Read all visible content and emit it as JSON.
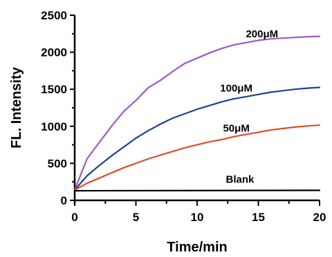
{
  "chart_data": {
    "type": "line",
    "xlabel": "Time/min",
    "ylabel": "FL. Intensity",
    "xlim": [
      0,
      20
    ],
    "ylim": [
      0,
      2500
    ],
    "x_ticks": [
      0,
      5,
      10,
      15,
      20
    ],
    "y_ticks": [
      0,
      500,
      1000,
      1500,
      2000,
      2500
    ],
    "grid": false,
    "legend": "inline labels",
    "series": [
      {
        "name": "200μM",
        "color": "#9b59c6",
        "x": [
          0,
          1,
          2,
          3,
          4,
          5,
          6,
          7,
          8,
          9,
          10,
          11,
          12,
          13,
          14,
          15,
          16,
          17,
          18,
          19,
          20
        ],
        "y": [
          140,
          560,
          780,
          1000,
          1200,
          1350,
          1520,
          1620,
          1740,
          1850,
          1920,
          1990,
          2050,
          2100,
          2130,
          2160,
          2180,
          2190,
          2200,
          2210,
          2215
        ]
      },
      {
        "name": "100μM",
        "color": "#1f3f9a",
        "x": [
          0,
          1,
          2,
          3,
          4,
          5,
          6,
          7,
          8,
          9,
          10,
          11,
          12,
          13,
          14,
          15,
          16,
          17,
          18,
          19,
          20
        ],
        "y": [
          140,
          330,
          470,
          600,
          720,
          840,
          940,
          1030,
          1110,
          1170,
          1230,
          1280,
          1330,
          1370,
          1400,
          1430,
          1460,
          1480,
          1500,
          1515,
          1525
        ]
      },
      {
        "name": "50μM",
        "color": "#e04a2a",
        "x": [
          0,
          1,
          2,
          3,
          4,
          5,
          6,
          7,
          8,
          9,
          10,
          11,
          12,
          13,
          14,
          15,
          16,
          17,
          18,
          19,
          20
        ],
        "y": [
          140,
          230,
          300,
          370,
          440,
          500,
          560,
          610,
          660,
          710,
          750,
          790,
          820,
          860,
          890,
          920,
          950,
          970,
          990,
          1005,
          1015
        ]
      },
      {
        "name": "Blank",
        "color": "#000000",
        "x": [
          0,
          20
        ],
        "y": [
          130,
          135
        ]
      }
    ]
  }
}
